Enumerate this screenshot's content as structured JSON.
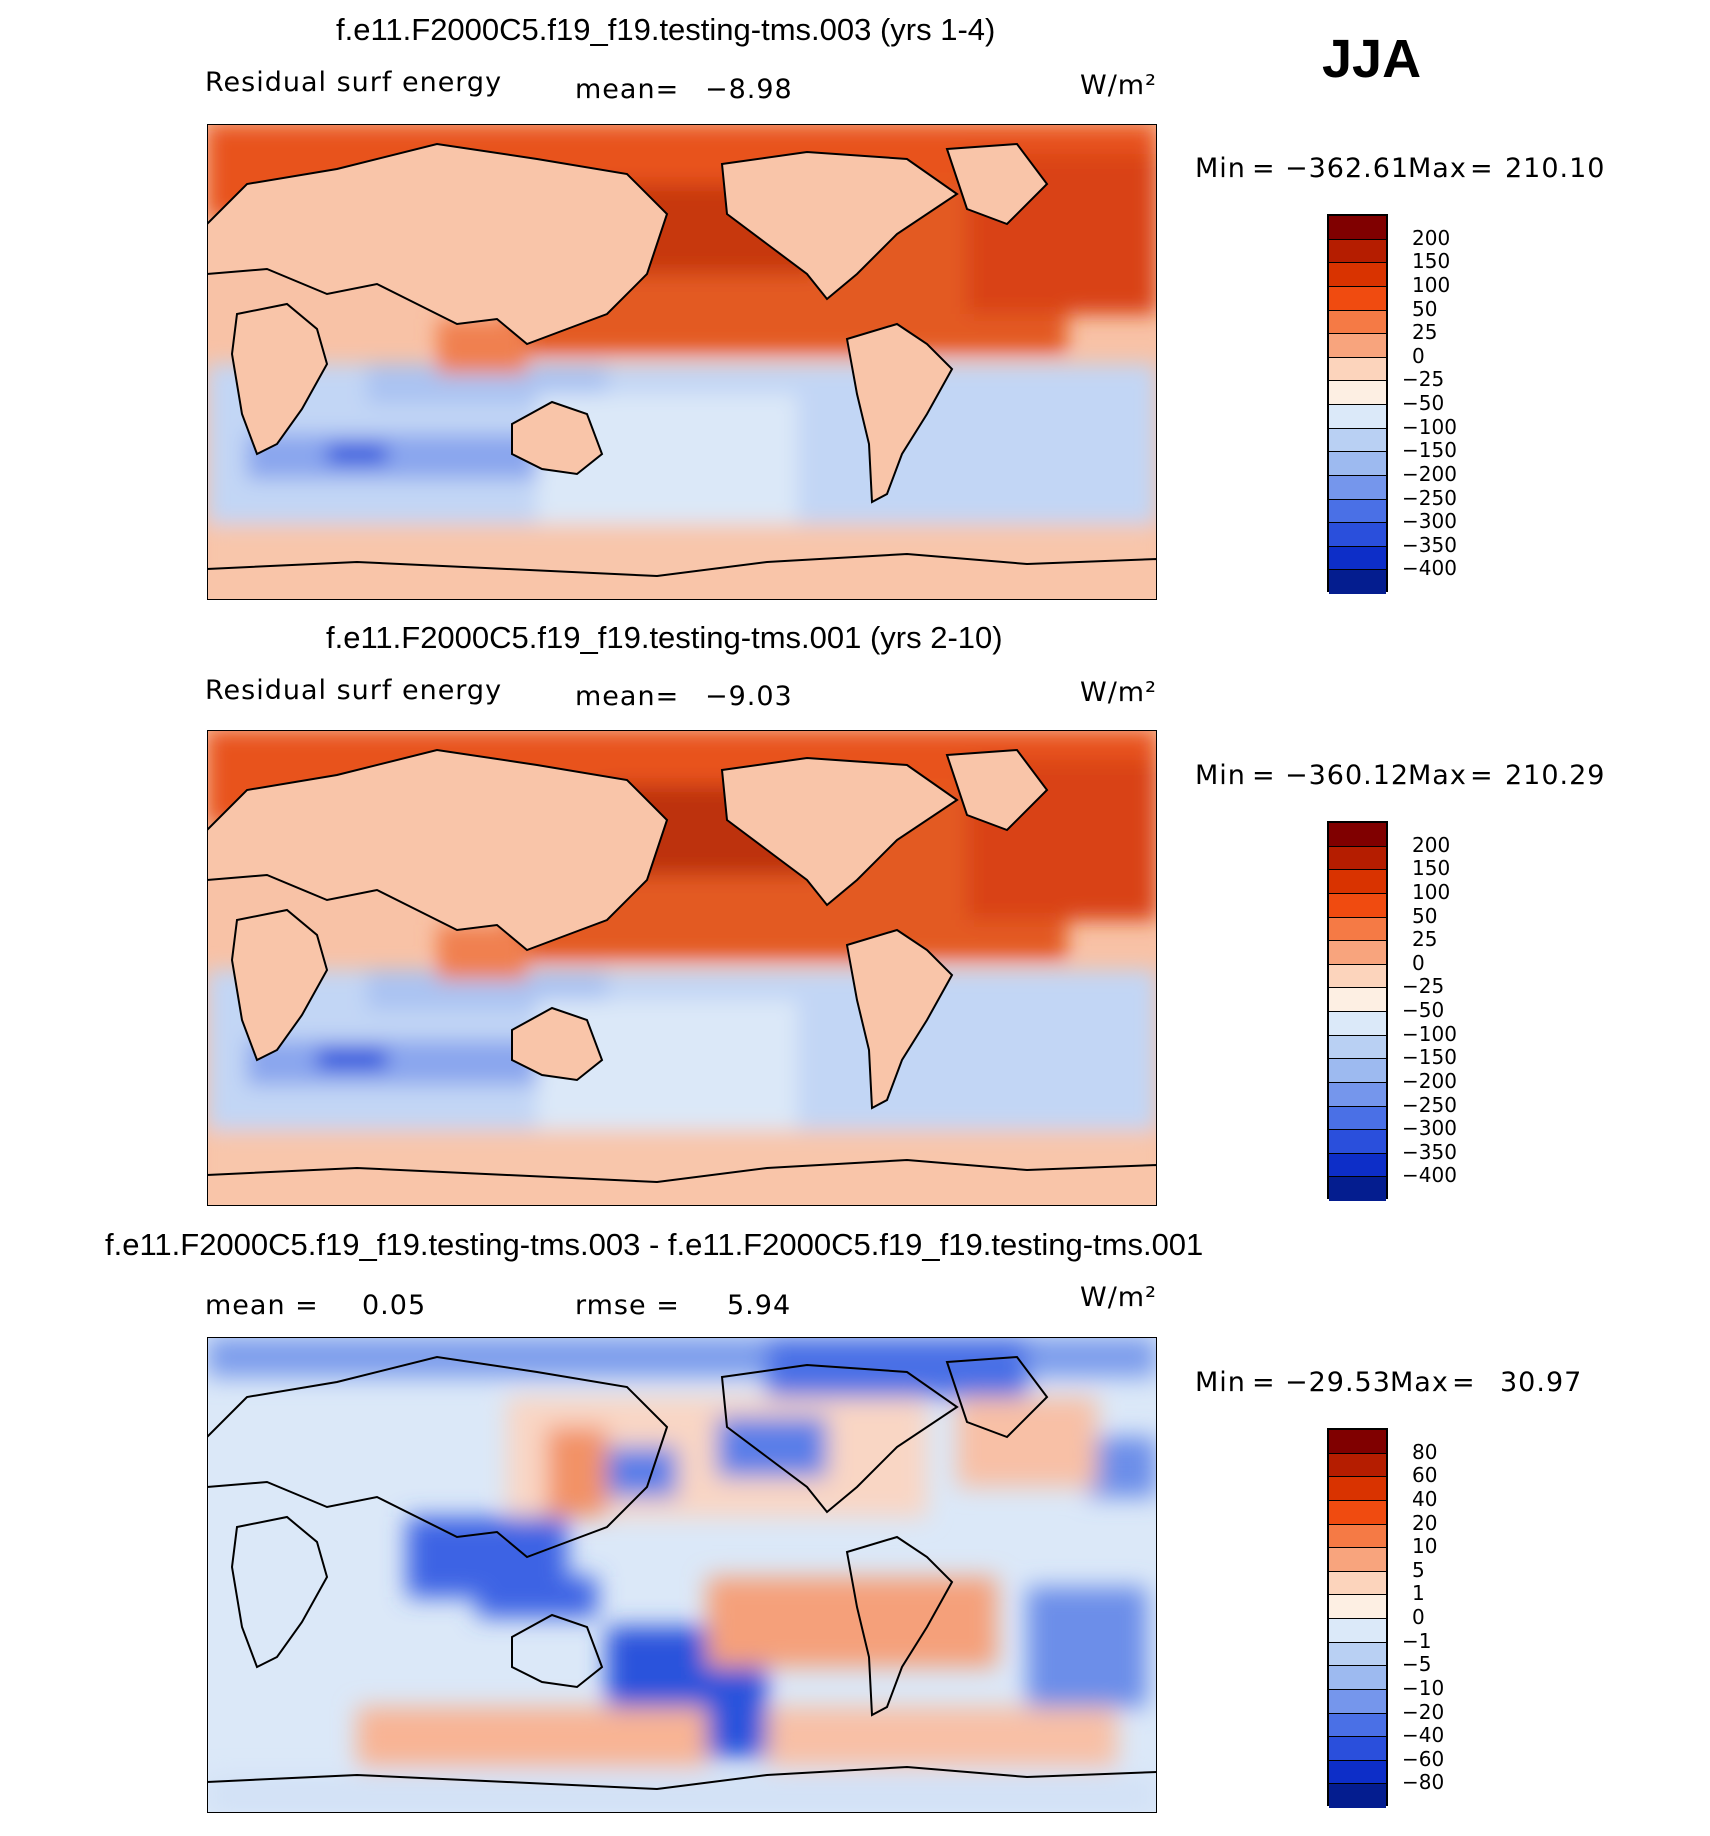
{
  "season": "JJA",
  "units": "W/m²",
  "chart_data": [
    {
      "type": "heatmap",
      "title": "f.e11.F2000C5.f19_f19.testing-tms.003 (yrs 1-4)",
      "variable_label": "Residual surf energy",
      "mean_label": "mean=",
      "mean_value": "−8.98",
      "units": "W/m²",
      "min_label": "Min",
      "min_value": "−362.61",
      "max_label": "Max",
      "max_value": "210.10",
      "colorbar_levels": [
        "200",
        "150",
        "100",
        "50",
        "25",
        "0",
        "−25",
        "−50",
        "−100",
        "−150",
        "−200",
        "−250",
        "−300",
        "−350",
        "−400"
      ],
      "colorbar_colors": [
        "#800000",
        "#b51d00",
        "#d93300",
        "#f04b10",
        "#f57a45",
        "#f8a47d",
        "#fcd4bc",
        "#fdefe3",
        "#dbe9f9",
        "#b9d0f3",
        "#9dbaf0",
        "#7596ec",
        "#4a70e6",
        "#2a4fdc",
        "#0d2ec8",
        "#041d8f"
      ]
    },
    {
      "type": "heatmap",
      "title": "f.e11.F2000C5.f19_f19.testing-tms.001 (yrs 2-10)",
      "variable_label": "Residual surf energy",
      "mean_label": "mean=",
      "mean_value": "−9.03",
      "units": "W/m²",
      "min_label": "Min",
      "min_value": "−360.12",
      "max_label": "Max",
      "max_value": "210.29",
      "colorbar_levels": [
        "200",
        "150",
        "100",
        "50",
        "25",
        "0",
        "−25",
        "−50",
        "−100",
        "−150",
        "−200",
        "−250",
        "−300",
        "−350",
        "−400"
      ],
      "colorbar_colors": [
        "#800000",
        "#b51d00",
        "#d93300",
        "#f04b10",
        "#f57a45",
        "#f8a47d",
        "#fcd4bc",
        "#fdefe3",
        "#dbe9f9",
        "#b9d0f3",
        "#9dbaf0",
        "#7596ec",
        "#4a70e6",
        "#2a4fdc",
        "#0d2ec8",
        "#041d8f"
      ]
    },
    {
      "type": "heatmap",
      "title": "f.e11.F2000C5.f19_f19.testing-tms.003 - f.e11.F2000C5.f19_f19.testing-tms.001",
      "mean_label": "mean =",
      "mean_value": "0.05",
      "rmse_label": "rmse =",
      "rmse_value": "5.94",
      "units": "W/m²",
      "min_label": "Min",
      "min_value": "−29.53",
      "max_label": "Max",
      "max_value": "30.97",
      "colorbar_levels": [
        "80",
        "60",
        "40",
        "20",
        "10",
        "5",
        "1",
        "0",
        "−1",
        "−5",
        "−10",
        "−20",
        "−40",
        "−60",
        "−80"
      ],
      "colorbar_colors": [
        "#800000",
        "#b51d00",
        "#d93300",
        "#f04b10",
        "#f57a45",
        "#f8a47d",
        "#fcd4bc",
        "#fdefe3",
        "#dbe9f9",
        "#b9d0f3",
        "#9dbaf0",
        "#7596ec",
        "#4a70e6",
        "#2a4fdc",
        "#0d2ec8",
        "#041d8f"
      ]
    }
  ]
}
